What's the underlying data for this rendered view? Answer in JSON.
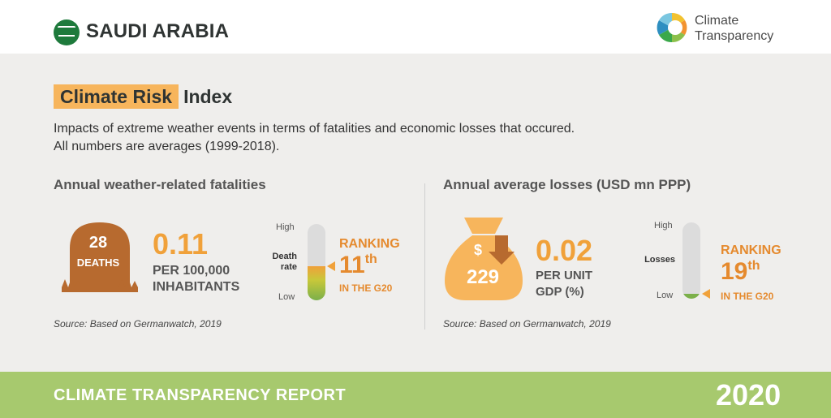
{
  "header": {
    "country": "SAUDI ARABIA",
    "brand_line1": "Climate",
    "brand_line2": "Transparency"
  },
  "title": {
    "highlight": "Climate Risk",
    "rest": "Index"
  },
  "description": {
    "line1": "Impacts of extreme weather events in terms of fatalities and economic losses that occured.",
    "line2": "All numbers are averages (1999-2018)."
  },
  "fatalities": {
    "title": "Annual weather-related fatalities",
    "deaths_num": "28",
    "deaths_label": "DEATHS",
    "value": "0.11",
    "value_line1": "PER 100,000",
    "value_line2": "INHABITANTS",
    "gauge_high": "High",
    "gauge_mid_line1": "Death",
    "gauge_mid_line2": "rate",
    "gauge_low": "Low",
    "gauge_level": 0.45,
    "ranking_label": "RANKING",
    "ranking_num": "11",
    "ranking_suffix": "th",
    "ranking_sub": "IN THE G20",
    "source": "Source: Based on Germanwatch, 2019"
  },
  "losses": {
    "title": "Annual average losses (USD mn PPP)",
    "currency_symbol": "$",
    "bag_value": "229",
    "value": "0.02",
    "value_line1": "PER UNIT",
    "value_line2": "GDP (%)",
    "gauge_high": "High",
    "gauge_mid": "Losses",
    "gauge_low": "Low",
    "gauge_level": 0.05,
    "ranking_label": "RANKING",
    "ranking_num": "19",
    "ranking_suffix": "th",
    "ranking_sub": "IN THE G20",
    "source": "Source: Based on Germanwatch, 2019"
  },
  "footer": {
    "report_title": "CLIMATE TRANSPARENCY REPORT",
    "year": "2020"
  },
  "colors": {
    "accent_orange": "#f0a13a",
    "ranking_orange": "#e58a2e",
    "grave_brown": "#b76a2f",
    "bag_orange": "#f7b55c",
    "footer_green": "#a7c96e",
    "flag_green": "#1e7a3c",
    "content_bg": "#efeeec"
  }
}
